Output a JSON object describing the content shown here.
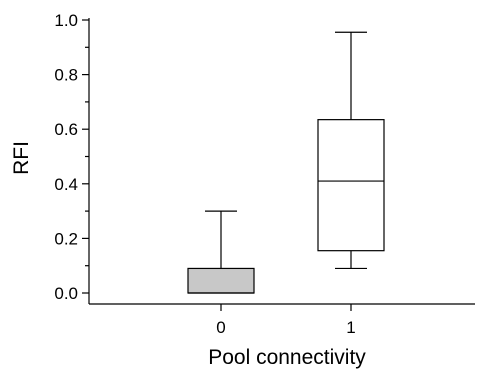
{
  "chart_data": {
    "type": "box",
    "xlabel": "Pool connectivity",
    "ylabel": "RFI",
    "ylim": [
      0,
      1.0
    ],
    "yticks": [
      "0.0",
      "0.2",
      "0.4",
      "0.6",
      "0.8",
      "1.0"
    ],
    "categories": [
      "0",
      "1"
    ],
    "boxes": [
      {
        "category": "0",
        "whisker_low": 0.0,
        "q1": 0.0,
        "median": 0.0,
        "q3": 0.09,
        "whisker_high": 0.3,
        "fill": "#c8c8c8"
      },
      {
        "category": "1",
        "whisker_low": 0.09,
        "q1": 0.155,
        "median": 0.41,
        "q3": 0.635,
        "whisker_high": 0.955,
        "fill": "#ffffff"
      }
    ],
    "grid": false
  }
}
